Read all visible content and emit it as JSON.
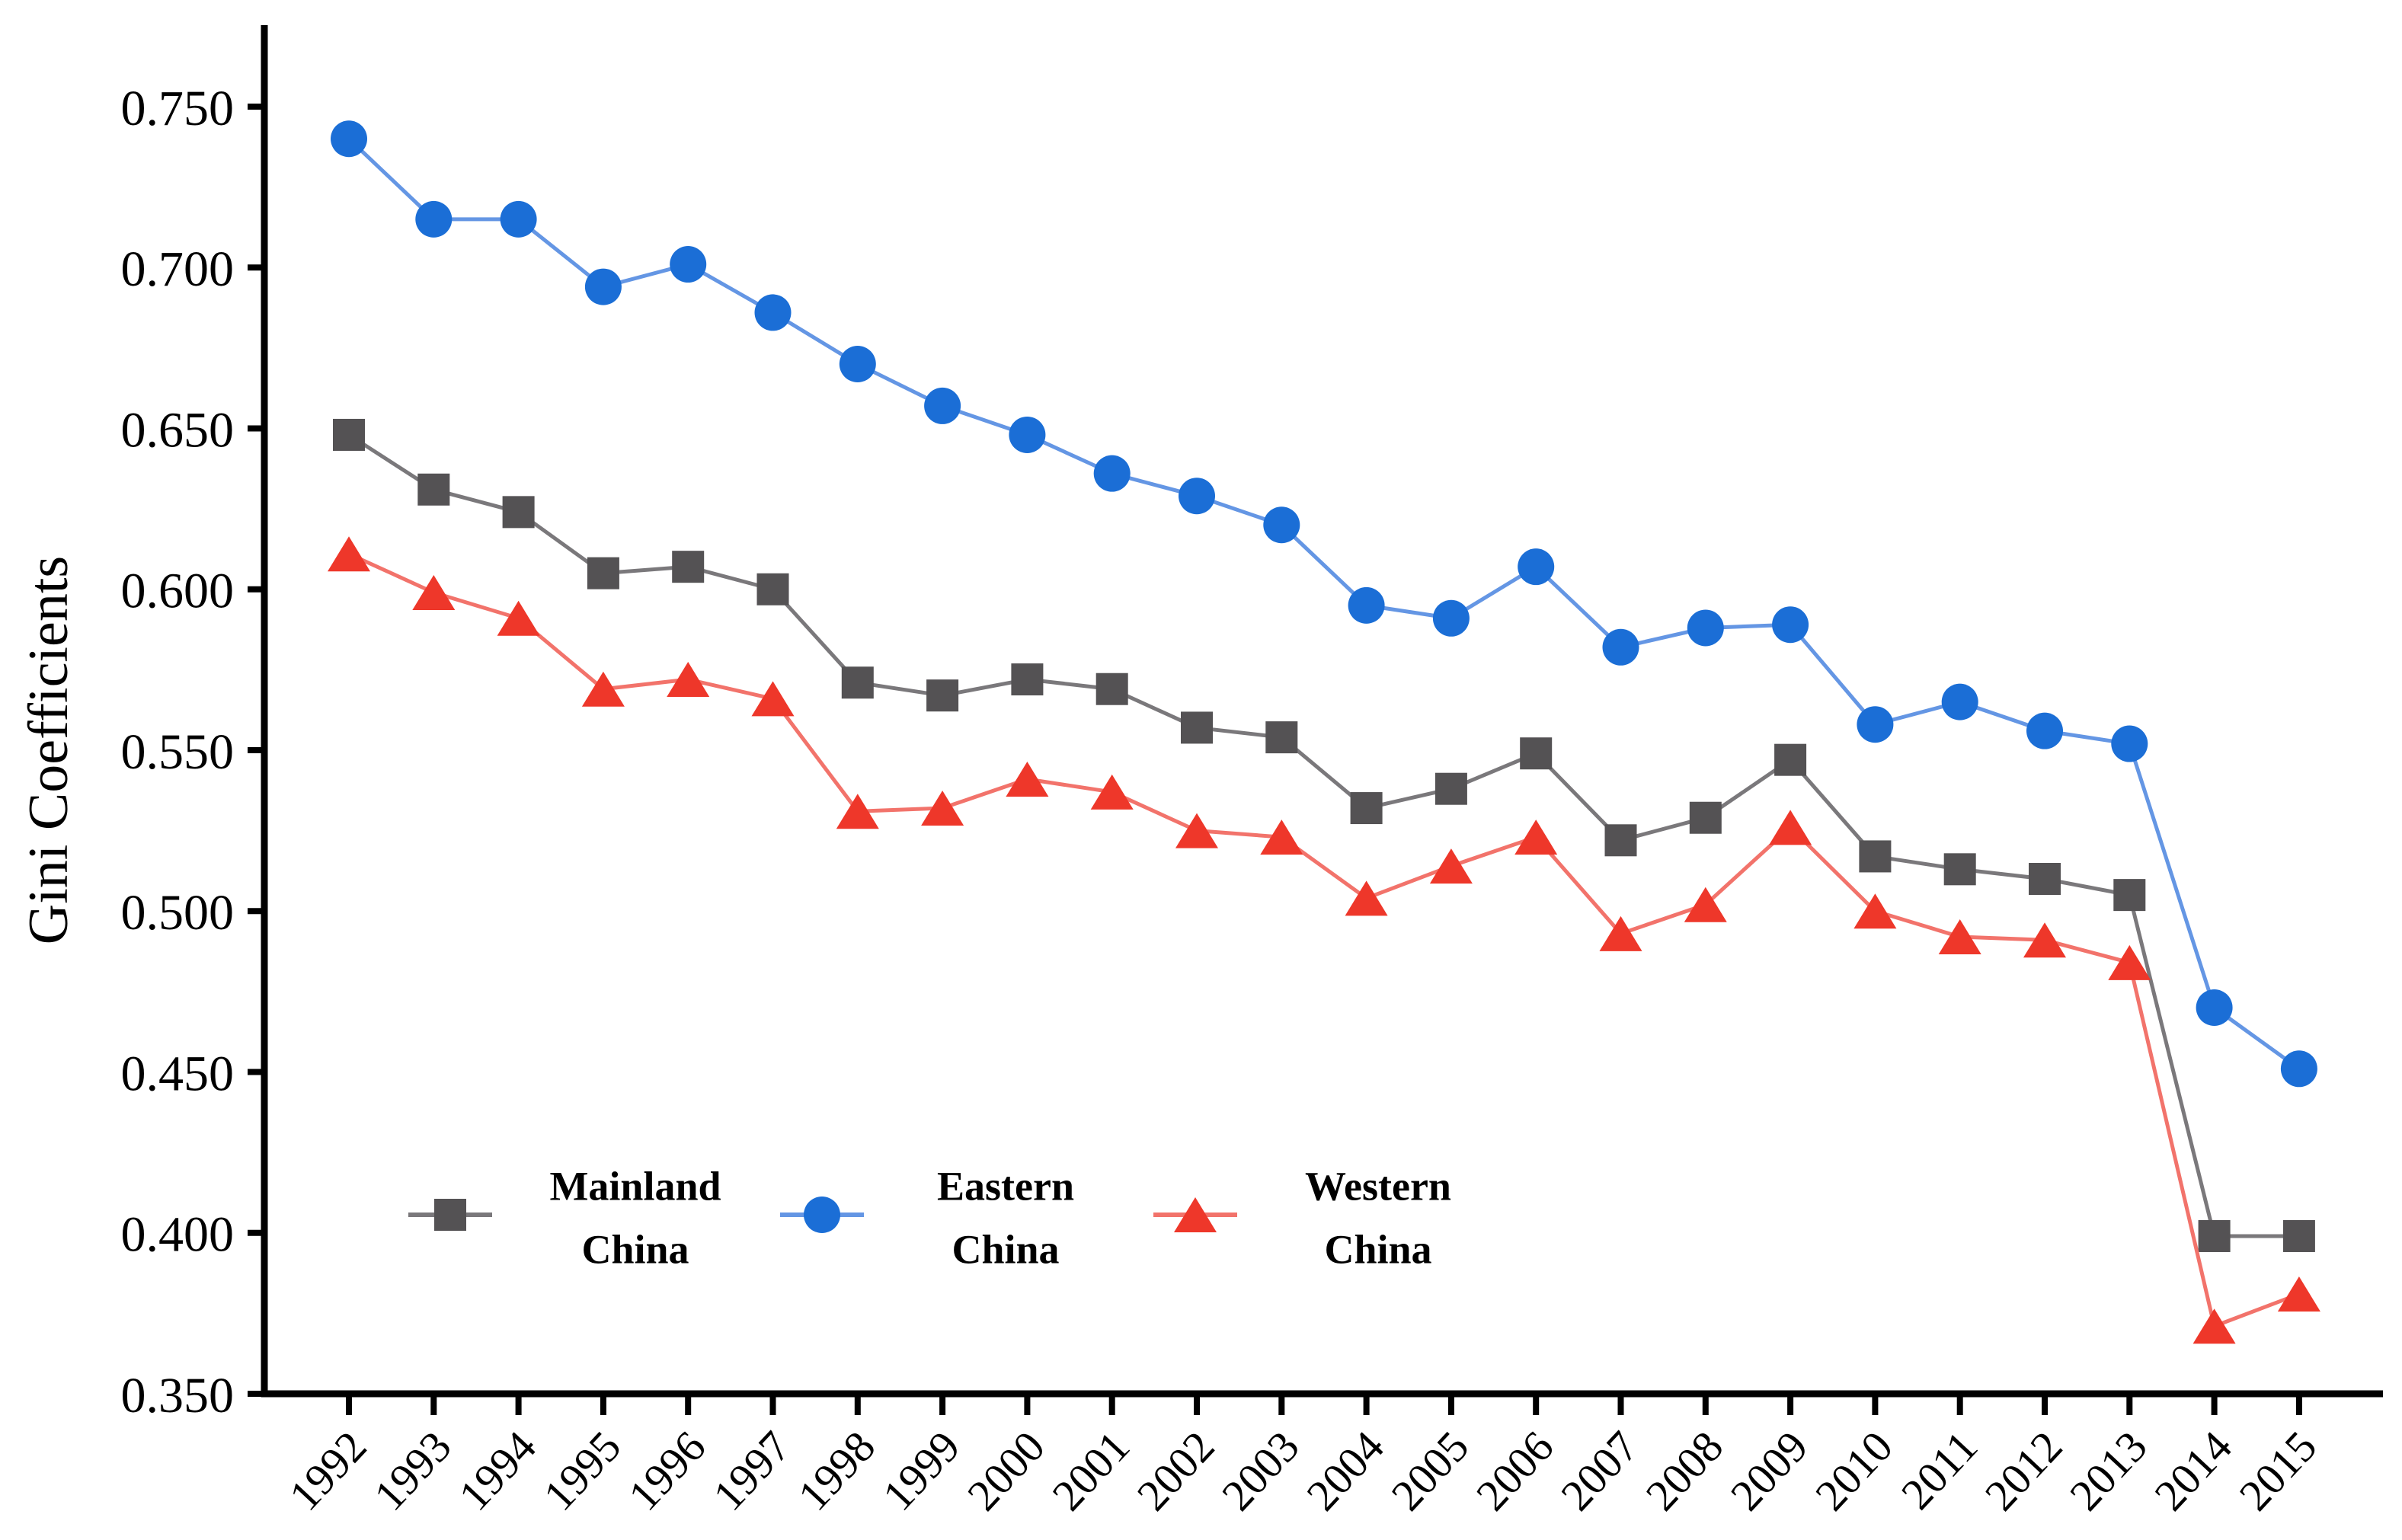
{
  "figure": {
    "background": "#ffffff"
  },
  "chart_data": {
    "type": "line",
    "title": "",
    "ylabel": "Gini Coefficients",
    "xlabel": "",
    "x": [
      "1992",
      "1993",
      "1994",
      "1995",
      "1996",
      "1997",
      "1998",
      "1999",
      "2000",
      "2001",
      "2002",
      "2003",
      "2004",
      "2005",
      "2006",
      "2007",
      "2008",
      "2009",
      "2010",
      "2011",
      "2012",
      "2013",
      "2014",
      "2015"
    ],
    "ylim": [
      0.35,
      0.75
    ],
    "ytick_step": 0.05,
    "ytick_labels": [
      "0.750",
      "0.700",
      "0.650",
      "0.600",
      "0.550",
      "0.500",
      "0.450",
      "0.400",
      "0.350"
    ],
    "grid": false,
    "legend_position": "inside-bottom-left",
    "axis_color": "#000000",
    "text_color": "#000000",
    "series": [
      {
        "name": "Mainland China",
        "legend_lines": [
          "Mainland",
          "China"
        ],
        "marker": "square",
        "color": "#545254",
        "line_color": "#7a787b",
        "values": [
          0.648,
          0.631,
          0.624,
          0.605,
          0.607,
          0.6,
          0.571,
          0.567,
          0.572,
          0.569,
          0.557,
          0.554,
          0.532,
          0.538,
          0.549,
          0.522,
          0.529,
          0.547,
          0.517,
          0.513,
          0.51,
          0.505,
          0.399,
          0.399
        ]
      },
      {
        "name": "Eastern China",
        "legend_lines": [
          "Eastern",
          "China"
        ],
        "marker": "circle",
        "color": "#1b6ed6",
        "line_color": "#6496e4",
        "values": [
          0.74,
          0.715,
          0.715,
          0.694,
          0.701,
          0.686,
          0.67,
          0.657,
          0.648,
          0.636,
          0.629,
          0.62,
          0.595,
          0.591,
          0.607,
          0.582,
          0.588,
          0.589,
          0.558,
          0.565,
          0.556,
          0.552,
          0.47,
          0.451
        ]
      },
      {
        "name": "Western China",
        "legend_lines": [
          "Western",
          "China"
        ],
        "marker": "triangle",
        "color": "#ee372a",
        "line_color": "#f2736b",
        "values": [
          0.611,
          0.599,
          0.591,
          0.569,
          0.572,
          0.566,
          0.531,
          0.532,
          0.541,
          0.537,
          0.525,
          0.523,
          0.504,
          0.514,
          0.523,
          0.493,
          0.502,
          0.526,
          0.5,
          0.492,
          0.491,
          0.484,
          0.371,
          0.381
        ]
      }
    ]
  }
}
